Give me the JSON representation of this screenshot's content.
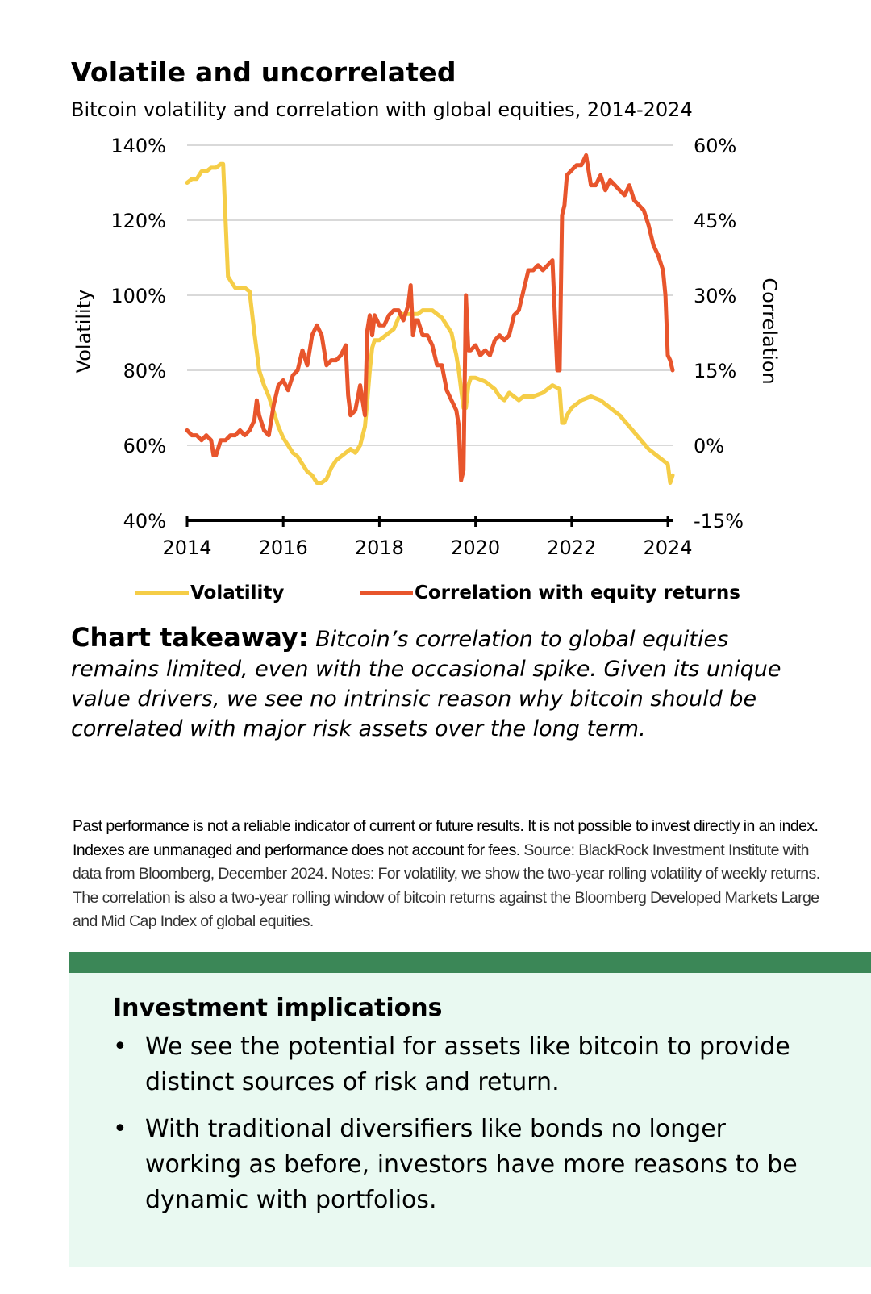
{
  "title": "Volatile and uncorrelated",
  "subtitle": "Bitcoin volatility and correlation with global equities, 2014-2024",
  "takeaway": {
    "label": "Chart takeaway:",
    "text": "Bitcoin’s correlation to global equities remains limited, even with the occasional spike. Given its unique value drivers, we see no intrinsic reason why bitcoin should be correlated with major risk assets over the long term."
  },
  "notes": {
    "bold": "Past performance is not a reliable indicator of current or future results. It is not possible to invest directly in an index. Indexes are unmanaged and performance does not account for fees.",
    "regular": " Source: BlackRock Investment Institute with data from Bloomberg, December 2024. Notes: For volatility, we show the two-year rolling volatility of weekly returns. The correlation is also a two-year rolling window of bitcoin returns against the Bloomberg Developed Markets Large and Mid Cap Index of global equities."
  },
  "implications": {
    "title": "Investment implications",
    "bullets": [
      "We see the potential for assets like bitcoin to provide distinct sources of risk and return.",
      "With traditional diversifiers like bonds no longer working as before, investors have more reasons to be dynamic with portfolios."
    ],
    "bullet_char": "•"
  },
  "colors": {
    "volatility": "#f5cd47",
    "correlation": "#e8552c",
    "grid": "#d9d9d9",
    "axis": "#000000",
    "implications_bar": "#3b8757",
    "implications_bg": "#e9f9f1"
  },
  "chart_data": {
    "type": "line",
    "title": "Volatile and uncorrelated",
    "subtitle": "Bitcoin volatility and correlation with global equities, 2014-2024",
    "ylabel": "Volatility",
    "y2label": "Correlation",
    "ylim": [
      40,
      140
    ],
    "y2lim": [
      -15,
      60
    ],
    "xlim": [
      2014.0,
      2024.1
    ],
    "xticks": [
      2014,
      2016,
      2018,
      2020,
      2022,
      2024
    ],
    "yticks": [
      40,
      60,
      80,
      100,
      120,
      140
    ],
    "y2ticks": [
      -15,
      0,
      15,
      30,
      45,
      60
    ],
    "yticklabels": [
      "40%",
      "60%",
      "80%",
      "100%",
      "120%",
      "140%"
    ],
    "y2ticklabels": [
      "-15%",
      "0%",
      "15%",
      "30%",
      "45%",
      "60%"
    ],
    "grid": true,
    "legend_position": "bottom",
    "series": [
      {
        "name": "Volatility",
        "axis": "left",
        "x": [
          2014.0,
          2014.1,
          2014.2,
          2014.3,
          2014.4,
          2014.5,
          2014.6,
          2014.7,
          2014.75,
          2014.8,
          2014.85,
          2014.9,
          2015.0,
          2015.1,
          2015.2,
          2015.3,
          2015.4,
          2015.5,
          2015.55,
          2015.6,
          2015.7,
          2015.8,
          2015.9,
          2016.0,
          2016.1,
          2016.2,
          2016.3,
          2016.4,
          2016.5,
          2016.6,
          2016.7,
          2016.8,
          2016.9,
          2017.0,
          2017.1,
          2017.2,
          2017.3,
          2017.4,
          2017.5,
          2017.6,
          2017.7,
          2017.75,
          2017.8,
          2017.85,
          2017.9,
          2018.0,
          2018.1,
          2018.2,
          2018.3,
          2018.4,
          2018.5,
          2018.6,
          2018.7,
          2018.8,
          2018.9,
          2019.0,
          2019.1,
          2019.2,
          2019.3,
          2019.4,
          2019.5,
          2019.55,
          2019.6,
          2019.65,
          2019.7,
          2019.75,
          2019.8,
          2019.85,
          2019.9,
          2020.0,
          2020.2,
          2020.4,
          2020.5,
          2020.6,
          2020.7,
          2020.8,
          2020.9,
          2021.0,
          2021.2,
          2021.4,
          2021.6,
          2021.75,
          2021.8,
          2021.85,
          2021.9,
          2022.0,
          2022.2,
          2022.4,
          2022.6,
          2022.8,
          2023.0,
          2023.2,
          2023.4,
          2023.6,
          2023.8,
          2023.9,
          2024.0,
          2024.05,
          2024.1
        ],
        "values": [
          130,
          131,
          131,
          133,
          133,
          134,
          134,
          135,
          135,
          120,
          105,
          104,
          102,
          102,
          102,
          101,
          90,
          80,
          78,
          76,
          73,
          69,
          65,
          62,
          60,
          58,
          57,
          55,
          53,
          52,
          50,
          50,
          51,
          54,
          56,
          57,
          58,
          59,
          58,
          60,
          65,
          72,
          80,
          86,
          88,
          88,
          89,
          90,
          91,
          94,
          95,
          95,
          95,
          95,
          96,
          96,
          96,
          95,
          94,
          92,
          90,
          87,
          84,
          80,
          75,
          70,
          70,
          76,
          78,
          78,
          77,
          75,
          73,
          72,
          74,
          73,
          72,
          73,
          73,
          74,
          76,
          75,
          66,
          66,
          68,
          70,
          72,
          73,
          72,
          70,
          68,
          65,
          62,
          59,
          57,
          56,
          55,
          50,
          52
        ]
      },
      {
        "name": "Correlation with equity returns",
        "axis": "right",
        "x": [
          2014.0,
          2014.1,
          2014.2,
          2014.3,
          2014.4,
          2014.5,
          2014.55,
          2014.6,
          2014.7,
          2014.8,
          2014.9,
          2015.0,
          2015.1,
          2015.2,
          2015.3,
          2015.4,
          2015.45,
          2015.5,
          2015.6,
          2015.7,
          2015.8,
          2015.9,
          2016.0,
          2016.1,
          2016.2,
          2016.3,
          2016.4,
          2016.5,
          2016.6,
          2016.7,
          2016.8,
          2016.9,
          2017.0,
          2017.1,
          2017.2,
          2017.25,
          2017.3,
          2017.35,
          2017.4,
          2017.5,
          2017.6,
          2017.7,
          2017.75,
          2017.8,
          2017.85,
          2017.9,
          2018.0,
          2018.1,
          2018.2,
          2018.3,
          2018.4,
          2018.5,
          2018.6,
          2018.65,
          2018.7,
          2018.75,
          2018.8,
          2018.9,
          2019.0,
          2019.1,
          2019.2,
          2019.3,
          2019.4,
          2019.5,
          2019.6,
          2019.65,
          2019.7,
          2019.75,
          2019.8,
          2019.85,
          2019.9,
          2020.0,
          2020.1,
          2020.2,
          2020.3,
          2020.4,
          2020.5,
          2020.6,
          2020.7,
          2020.8,
          2020.9,
          2021.0,
          2021.1,
          2021.2,
          2021.3,
          2021.4,
          2021.5,
          2021.6,
          2021.7,
          2021.75,
          2021.8,
          2021.85,
          2021.9,
          2022.0,
          2022.1,
          2022.2,
          2022.3,
          2022.4,
          2022.5,
          2022.6,
          2022.7,
          2022.8,
          2022.9,
          2023.0,
          2023.1,
          2023.2,
          2023.3,
          2023.4,
          2023.5,
          2023.6,
          2023.7,
          2023.8,
          2023.9,
          2023.95,
          2024.0,
          2024.05,
          2024.1
        ],
        "values": [
          3,
          2,
          2,
          1,
          2,
          1,
          -2,
          -2,
          1,
          1,
          2,
          2,
          3,
          2,
          3,
          5,
          9,
          6,
          3,
          2,
          8,
          12,
          13,
          11,
          14,
          15,
          19,
          16,
          22,
          24,
          22,
          16,
          17,
          17,
          18,
          19,
          20,
          10,
          6,
          7,
          12,
          6,
          23,
          26,
          22,
          26,
          24,
          24,
          26,
          27,
          27,
          25,
          28,
          32,
          22,
          25,
          25,
          22,
          22,
          20,
          16,
          16,
          11,
          9,
          7,
          4,
          -7,
          -5,
          30,
          19,
          19,
          20,
          18,
          19,
          18,
          21,
          22,
          21,
          22,
          26,
          27,
          31,
          35,
          35,
          36,
          35,
          36,
          37,
          15,
          15,
          46,
          48,
          54,
          55,
          56,
          56,
          58,
          52,
          52,
          54,
          51,
          53,
          52,
          51,
          50,
          52,
          49,
          48,
          47,
          44,
          40,
          38,
          35,
          30,
          18,
          17,
          15
        ]
      }
    ]
  }
}
